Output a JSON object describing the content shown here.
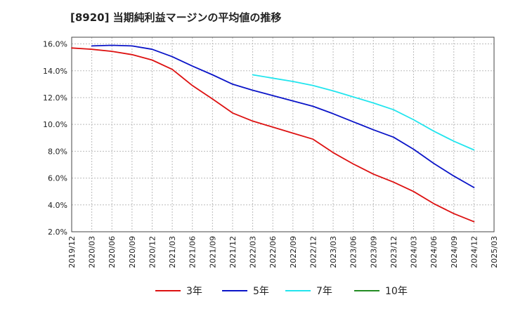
{
  "title": "[8920]  当期純利益マージンの平均値の推移",
  "chart_data": {
    "type": "line",
    "title": "[8920]  当期純利益マージンの平均値の推移",
    "xlabel": "",
    "ylabel": "",
    "ylim": [
      2.0,
      16.5
    ],
    "yticks": [
      2.0,
      4.0,
      6.0,
      8.0,
      10.0,
      12.0,
      14.0,
      16.0
    ],
    "ytick_labels": [
      "2.0%",
      "4.0%",
      "6.0%",
      "8.0%",
      "10.0%",
      "12.0%",
      "14.0%",
      "16.0%"
    ],
    "xticks": [
      "2019/12",
      "2020/03",
      "2020/06",
      "2020/09",
      "2020/12",
      "2021/03",
      "2021/06",
      "2021/09",
      "2021/12",
      "2022/03",
      "2022/06",
      "2022/09",
      "2022/12",
      "2023/03",
      "2023/06",
      "2023/09",
      "2023/12",
      "2024/03",
      "2024/06",
      "2024/09",
      "2024/12",
      "2025/03"
    ],
    "grid": true,
    "legend_position": "bottom",
    "series": [
      {
        "name": "3年",
        "color": "#dd1111",
        "points": [
          [
            "2019/12",
            15.7
          ],
          [
            "2020/03",
            15.6
          ],
          [
            "2020/06",
            15.45
          ],
          [
            "2020/09",
            15.2
          ],
          [
            "2020/12",
            14.8
          ],
          [
            "2021/03",
            14.1
          ],
          [
            "2021/06",
            12.9
          ],
          [
            "2021/09",
            11.9
          ],
          [
            "2021/12",
            10.85
          ],
          [
            "2022/03",
            10.25
          ],
          [
            "2022/06",
            9.8
          ],
          [
            "2022/09",
            9.35
          ],
          [
            "2022/12",
            8.9
          ],
          [
            "2023/03",
            7.9
          ],
          [
            "2023/06",
            7.05
          ],
          [
            "2023/09",
            6.3
          ],
          [
            "2023/12",
            5.7
          ],
          [
            "2024/03",
            5.0
          ],
          [
            "2024/06",
            4.1
          ],
          [
            "2024/09",
            3.35
          ],
          [
            "2024/12",
            2.75
          ]
        ]
      },
      {
        "name": "5年",
        "color": "#0a14c8",
        "points": [
          [
            "2020/03",
            15.85
          ],
          [
            "2020/06",
            15.9
          ],
          [
            "2020/09",
            15.85
          ],
          [
            "2020/12",
            15.6
          ],
          [
            "2021/03",
            15.05
          ],
          [
            "2021/06",
            14.35
          ],
          [
            "2021/09",
            13.7
          ],
          [
            "2021/12",
            13.0
          ],
          [
            "2022/03",
            12.55
          ],
          [
            "2022/06",
            12.15
          ],
          [
            "2022/09",
            11.75
          ],
          [
            "2022/12",
            11.35
          ],
          [
            "2023/03",
            10.8
          ],
          [
            "2023/06",
            10.2
          ],
          [
            "2023/09",
            9.6
          ],
          [
            "2023/12",
            9.05
          ],
          [
            "2024/03",
            8.15
          ],
          [
            "2024/06",
            7.1
          ],
          [
            "2024/09",
            6.15
          ],
          [
            "2024/12",
            5.3
          ]
        ]
      },
      {
        "name": "7年",
        "color": "#22e5ee",
        "points": [
          [
            "2022/03",
            13.7
          ],
          [
            "2022/06",
            13.45
          ],
          [
            "2022/09",
            13.2
          ],
          [
            "2022/12",
            12.9
          ],
          [
            "2023/03",
            12.5
          ],
          [
            "2023/06",
            12.05
          ],
          [
            "2023/09",
            11.6
          ],
          [
            "2023/12",
            11.1
          ],
          [
            "2024/03",
            10.35
          ],
          [
            "2024/06",
            9.5
          ],
          [
            "2024/09",
            8.75
          ],
          [
            "2024/12",
            8.1
          ]
        ]
      },
      {
        "name": "10年",
        "color": "#228b22",
        "points": []
      }
    ]
  }
}
